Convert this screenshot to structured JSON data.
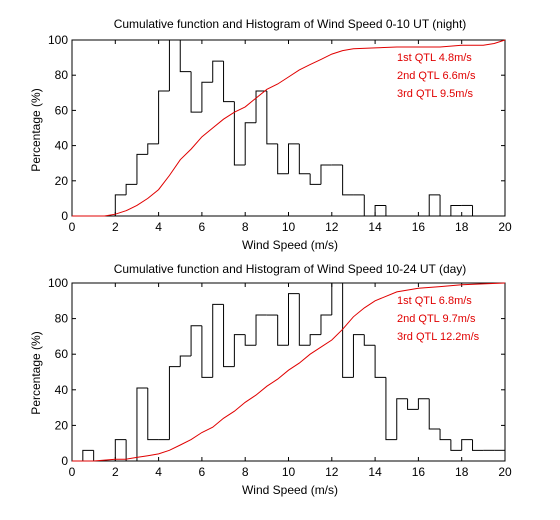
{
  "chart_data": [
    {
      "type": "histogram_with_cdf",
      "title": "Cumulative function and Histogram of Wind Speed 0-10 UT (night)",
      "xlabel": "Wind Speed (m/s)",
      "ylabel": "Percentage (%)",
      "xlim": [
        0,
        20
      ],
      "ylim": [
        0,
        100
      ],
      "xticks": [
        0,
        2,
        4,
        6,
        8,
        10,
        12,
        14,
        16,
        18,
        20
      ],
      "yticks": [
        0,
        20,
        40,
        60,
        80,
        100
      ],
      "grid": false,
      "histogram": {
        "color": "#000000",
        "bin_width": 0.5,
        "bin_starts": [
          0,
          0.5,
          1,
          1.5,
          2,
          2.5,
          3,
          3.5,
          4,
          4.5,
          5,
          5.5,
          6,
          6.5,
          7,
          7.5,
          8,
          8.5,
          9,
          9.5,
          10,
          10.5,
          11,
          11.5,
          12,
          12.5,
          13,
          13.5,
          14,
          14.5,
          15,
          15.5,
          16,
          16.5,
          17,
          17.5,
          18,
          18.5,
          19,
          19.5
        ],
        "values": [
          0,
          0,
          0,
          0,
          12,
          18,
          35,
          41,
          71,
          100,
          82,
          59,
          76,
          88,
          65,
          29,
          53,
          71,
          41,
          24,
          41,
          24,
          18,
          29,
          29,
          12,
          12,
          0,
          6,
          0,
          0,
          0,
          0,
          12,
          0,
          6,
          6,
          0,
          0,
          0
        ]
      },
      "cumulative": {
        "color": "#e00000",
        "x": [
          0,
          1,
          1.5,
          2,
          2.5,
          3,
          3.5,
          4,
          4.5,
          5,
          5.5,
          6,
          6.5,
          7,
          7.5,
          8,
          8.5,
          9,
          9.5,
          10,
          10.5,
          11,
          11.5,
          12,
          12.5,
          13,
          14,
          15,
          16,
          17,
          18,
          19,
          19.5,
          20
        ],
        "y": [
          0,
          0,
          0,
          1,
          3,
          6,
          10,
          15,
          23,
          32,
          38,
          45,
          50,
          55,
          59,
          62,
          67,
          72,
          75,
          79,
          83,
          86,
          89,
          92,
          94,
          95,
          95.5,
          96,
          96,
          96,
          97,
          97,
          98,
          100
        ]
      },
      "annotations": [
        {
          "text": "1st QTL 4.8m/s",
          "color": "#e00000"
        },
        {
          "text": "2nd QTL 6.6m/s",
          "color": "#e00000"
        },
        {
          "text": "3rd QTL 9.5m/s",
          "color": "#e00000"
        }
      ]
    },
    {
      "type": "histogram_with_cdf",
      "title": "Cumulative function and Histogram of Wind Speed 10-24 UT (day)",
      "xlabel": "Wind Speed (m/s)",
      "ylabel": "Percentage (%)",
      "xlim": [
        0,
        20
      ],
      "ylim": [
        0,
        100
      ],
      "xticks": [
        0,
        2,
        4,
        6,
        8,
        10,
        12,
        14,
        16,
        18,
        20
      ],
      "yticks": [
        0,
        20,
        40,
        60,
        80,
        100
      ],
      "grid": false,
      "histogram": {
        "color": "#000000",
        "bin_width": 0.5,
        "bin_starts": [
          0,
          0.5,
          1,
          1.5,
          2,
          2.5,
          3,
          3.5,
          4,
          4.5,
          5,
          5.5,
          6,
          6.5,
          7,
          7.5,
          8,
          8.5,
          9,
          9.5,
          10,
          10.5,
          11,
          11.5,
          12,
          12.5,
          13,
          13.5,
          14,
          14.5,
          15,
          15.5,
          16,
          16.5,
          17,
          17.5,
          18,
          18.5,
          19,
          19.5
        ],
        "values": [
          0,
          6,
          0,
          0,
          12,
          0,
          41,
          12,
          12,
          53,
          59,
          76,
          47,
          88,
          53,
          71,
          65,
          82,
          82,
          65,
          94,
          65,
          71,
          82,
          100,
          47,
          71,
          65,
          47,
          12,
          35,
          29,
          35,
          18,
          12,
          6,
          12,
          6,
          6,
          6
        ]
      },
      "cumulative": {
        "color": "#e00000",
        "x": [
          0,
          1,
          2,
          2.5,
          3,
          3.5,
          4,
          4.5,
          5,
          5.5,
          6,
          6.5,
          7,
          7.5,
          8,
          8.5,
          9,
          9.5,
          10,
          10.5,
          11,
          11.5,
          12,
          12.5,
          13,
          13.5,
          14,
          15,
          16,
          17,
          18,
          19,
          20
        ],
        "y": [
          0,
          0,
          1,
          1,
          2,
          3,
          4,
          6,
          9,
          12,
          16,
          19,
          24,
          28,
          33,
          37,
          42,
          46,
          51,
          55,
          60,
          64,
          68,
          74,
          81,
          86,
          90,
          95,
          97,
          98,
          99,
          99.5,
          100
        ]
      },
      "annotations": [
        {
          "text": "1st QTL 6.8m/s",
          "color": "#e00000"
        },
        {
          "text": "2nd QTL 9.7m/s",
          "color": "#e00000"
        },
        {
          "text": "3rd QTL 12.2m/s",
          "color": "#e00000"
        }
      ]
    }
  ]
}
